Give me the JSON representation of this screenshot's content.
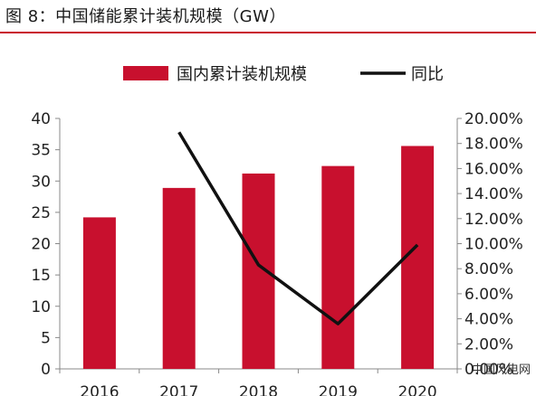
{
  "figure": {
    "title": "图 8：中国储能累计装机规模（GW）",
    "watermark": "中国风电网"
  },
  "colors": {
    "bar": "#c8102e",
    "line": "#111111",
    "title_rule": "#c8102e"
  },
  "chart_data": {
    "type": "bar",
    "categories": [
      "2016",
      "2017",
      "2018",
      "2019",
      "2020"
    ],
    "series": [
      {
        "name": "国内累计装机规模",
        "type": "bar",
        "axis": "left",
        "values": [
          24.2,
          28.9,
          31.2,
          32.4,
          35.6
        ]
      },
      {
        "name": "同比",
        "type": "line",
        "axis": "right",
        "values": [
          null,
          18.9,
          8.3,
          3.6,
          9.9
        ]
      }
    ],
    "y_left": {
      "min": 0,
      "max": 40,
      "ticks": [
        "0",
        "5",
        "10",
        "15",
        "20",
        "25",
        "30",
        "35",
        "40"
      ]
    },
    "y_right": {
      "min": 0,
      "max": 20,
      "ticks": [
        "0.00%",
        "2.00%",
        "4.00%",
        "6.00%",
        "8.00%",
        "10.00%",
        "12.00%",
        "14.00%",
        "16.00%",
        "18.00%",
        "20.00%"
      ]
    },
    "legend_position": "top",
    "grid": false
  }
}
